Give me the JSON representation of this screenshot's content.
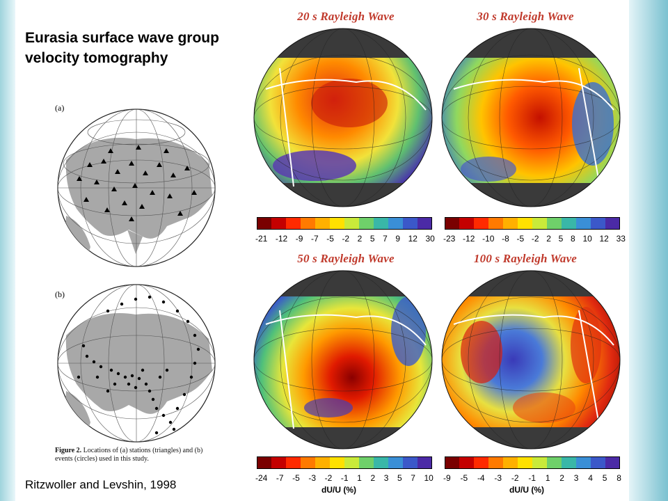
{
  "slide": {
    "title": "Eurasia surface wave group velocity tomography",
    "credit": "Ritzwoller and Levshin, 1998"
  },
  "figure2": {
    "panel_a": "(a)",
    "panel_b": "(b)",
    "caption_lead": "Figure 2.",
    "caption_text": "Locations of (a) stations (triangles) and (b) events (circles) used in this study."
  },
  "maps": [
    {
      "title": "20 s Rayleigh Wave",
      "scale": [
        "-21",
        "-12",
        "-9",
        "-7",
        "-5",
        "-2",
        "2",
        "5",
        "7",
        "9",
        "12",
        "30"
      ],
      "unit": ""
    },
    {
      "title": "30 s Rayleigh Wave",
      "scale": [
        "-23",
        "-12",
        "-10",
        "-8",
        "-5",
        "-2",
        "2",
        "5",
        "8",
        "10",
        "12",
        "33"
      ],
      "unit": ""
    },
    {
      "title": "50 s Rayleigh Wave",
      "scale": [
        "-24",
        "-7",
        "-5",
        "-3",
        "-2",
        "-1",
        "1",
        "2",
        "3",
        "5",
        "7",
        "10"
      ],
      "unit": "dU/U (%)"
    },
    {
      "title": "100 s Rayleigh Wave",
      "scale": [
        "-9",
        "-5",
        "-4",
        "-3",
        "-2",
        "-1",
        "1",
        "2",
        "3",
        "4",
        "5",
        "8"
      ],
      "unit": "dU/U (%)"
    }
  ],
  "colors": {
    "title_red": "#c0392b",
    "scale": [
      "#7a0000",
      "#c40000",
      "#ff2a00",
      "#ff7a00",
      "#ffb000",
      "#ffe100",
      "#c9ea3a",
      "#6fd06a",
      "#39b7a8",
      "#3a8fd6",
      "#3b58c9",
      "#4b2aa6"
    ]
  }
}
